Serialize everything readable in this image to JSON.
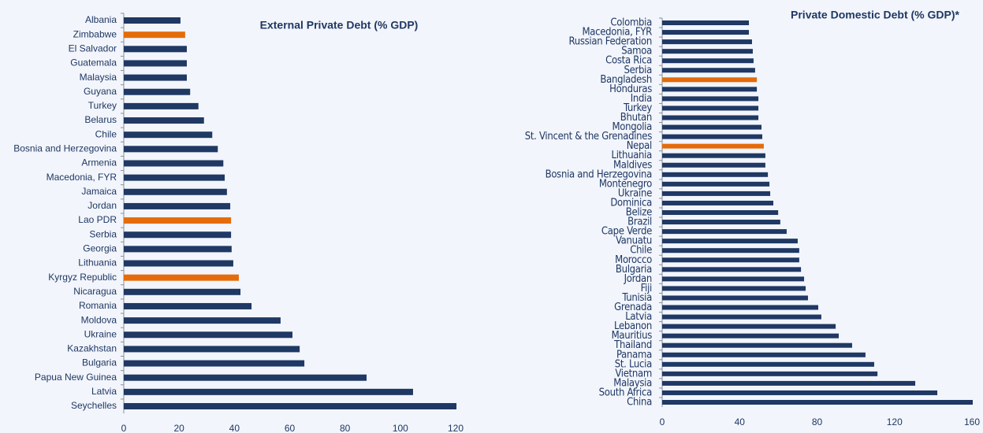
{
  "chart_data": [
    {
      "type": "barh",
      "title": "External Private Debt (% GDP)",
      "categories": [
        "Albania",
        "Zimbabwe",
        "El Salvador",
        "Guatemala",
        "Malaysia",
        "Guyana",
        "Turkey",
        "Belarus",
        "Chile",
        "Bosnia and Herzegovina",
        "Armenia",
        "Macedonia, FYR",
        "Jamaica",
        "Jordan",
        "Lao PDR",
        "Serbia",
        "Georgia",
        "Lithuania",
        "Kyrgyz Republic",
        "Nicaragua",
        "Romania",
        "Moldova",
        "Ukraine",
        "Kazakhstan",
        "Bulgaria",
        "Papua New Guinea",
        "Latvia",
        "Seychelles"
      ],
      "values": [
        20.5,
        22.2,
        22.8,
        22.8,
        22.8,
        24,
        27,
        29,
        32,
        34,
        36,
        36.5,
        37.3,
        38.5,
        38.8,
        38.8,
        39,
        39.6,
        41.6,
        42.2,
        46.2,
        56.7,
        61,
        63.6,
        65.3,
        87.8,
        104.6,
        120.3
      ],
      "colors": [
        "#1f3864",
        "#e46c0a",
        "#1f3864",
        "#1f3864",
        "#1f3864",
        "#1f3864",
        "#1f3864",
        "#1f3864",
        "#1f3864",
        "#1f3864",
        "#1f3864",
        "#1f3864",
        "#1f3864",
        "#1f3864",
        "#e46c0a",
        "#1f3864",
        "#1f3864",
        "#1f3864",
        "#e46c0a",
        "#1f3864",
        "#1f3864",
        "#1f3864",
        "#1f3864",
        "#1f3864",
        "#1f3864",
        "#1f3864",
        "#1f3864",
        "#1f3864"
      ],
      "xlim": [
        0,
        120
      ],
      "xticks": [
        0,
        20,
        40,
        60,
        80,
        100,
        120
      ]
    },
    {
      "type": "barh",
      "title": "Private Domestic Debt (% GDP)*",
      "categories": [
        "Colombia",
        "Macedonia, FYR",
        "Russian Federation",
        "Samoa",
        "Costa Rica",
        "Serbia",
        "Bangladesh",
        "Honduras",
        "India",
        "Turkey",
        "Bhutan",
        "Mongolia",
        "St. Vincent & the Grenadines",
        "Nepal",
        "Lithuania",
        "Maldives",
        "Bosnia and Herzegovina",
        "Montenegro",
        "Ukraine",
        "Dominica",
        "Belize",
        "Brazil",
        "Cape Verde",
        "Vanuatu",
        "Chile",
        "Morocco",
        "Bulgaria",
        "Jordan",
        "Fiji",
        "Tunisia",
        "Grenada",
        "Latvia",
        "Lebanon",
        "Mauritius",
        "Thailand",
        "Panama",
        "St. Lucia",
        "Vietnam",
        "Malaysia",
        "South Africa",
        "China"
      ],
      "values": [
        44.8,
        44.8,
        46.4,
        46.8,
        47.2,
        48,
        48.9,
        48.9,
        49.7,
        49.7,
        49.7,
        51.3,
        51.7,
        52.5,
        53.3,
        53.3,
        54.6,
        55.4,
        55.8,
        57.4,
        59.9,
        61,
        64.3,
        70,
        70.8,
        70.8,
        71.7,
        73.3,
        74.1,
        75.3,
        80.6,
        82.2,
        89.6,
        91.2,
        98.1,
        105,
        109.5,
        111.2,
        130.7,
        142.1,
        160.4
      ],
      "colors": [
        "#1f3864",
        "#1f3864",
        "#1f3864",
        "#1f3864",
        "#1f3864",
        "#1f3864",
        "#e46c0a",
        "#1f3864",
        "#1f3864",
        "#1f3864",
        "#1f3864",
        "#1f3864",
        "#1f3864",
        "#e46c0a",
        "#1f3864",
        "#1f3864",
        "#1f3864",
        "#1f3864",
        "#1f3864",
        "#1f3864",
        "#1f3864",
        "#1f3864",
        "#1f3864",
        "#1f3864",
        "#1f3864",
        "#1f3864",
        "#1f3864",
        "#1f3864",
        "#1f3864",
        "#1f3864",
        "#1f3864",
        "#1f3864",
        "#1f3864",
        "#1f3864",
        "#1f3864",
        "#1f3864",
        "#1f3864",
        "#1f3864",
        "#1f3864",
        "#1f3864",
        "#1f3864"
      ],
      "xlim": [
        0,
        160
      ],
      "xticks": [
        0,
        40,
        80,
        120,
        160
      ]
    }
  ]
}
